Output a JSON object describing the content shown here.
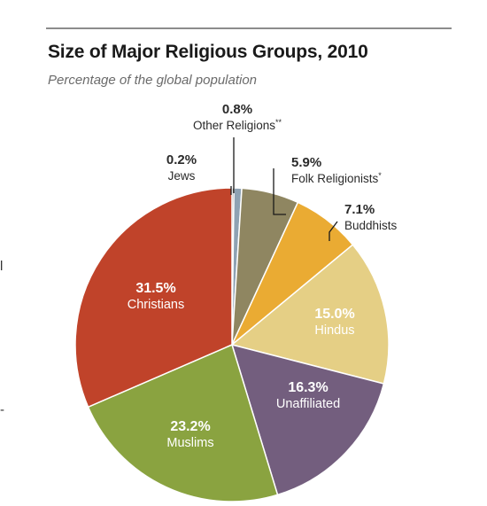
{
  "header": {
    "title": "Size of Major Religious Groups, 2010",
    "subtitle": "Percentage of the global population"
  },
  "left_edge": {
    "mark_top": "l",
    "mark_bottom": "-"
  },
  "chart_data": {
    "type": "pie",
    "title": "Size of Major Religious Groups, 2010",
    "subtitle": "Percentage of the global population",
    "slices": [
      {
        "label": "Jews",
        "value": 0.2,
        "pct_label": "0.2%",
        "color": "#4d4d4d"
      },
      {
        "label": "Other Religions**",
        "value": 0.8,
        "pct_label": "0.8%",
        "color": "#8ea2b3"
      },
      {
        "label": "Folk Religionists*",
        "value": 5.9,
        "pct_label": "5.9%",
        "color": "#8f8661"
      },
      {
        "label": "Buddhists",
        "value": 7.1,
        "pct_label": "7.1%",
        "color": "#eaab33"
      },
      {
        "label": "Hindus",
        "value": 15.0,
        "pct_label": "15.0%",
        "color": "#e5cf85"
      },
      {
        "label": "Unaffiliated",
        "value": 16.3,
        "pct_label": "16.3%",
        "color": "#735e7e"
      },
      {
        "label": "Muslims",
        "value": 23.2,
        "pct_label": "23.2%",
        "color": "#8aa340"
      },
      {
        "label": "Christians",
        "value": 31.5,
        "pct_label": "31.5%",
        "color": "#c0432a"
      }
    ],
    "start_angle_deg": 0,
    "direction": "clockwise",
    "legend": "none"
  }
}
